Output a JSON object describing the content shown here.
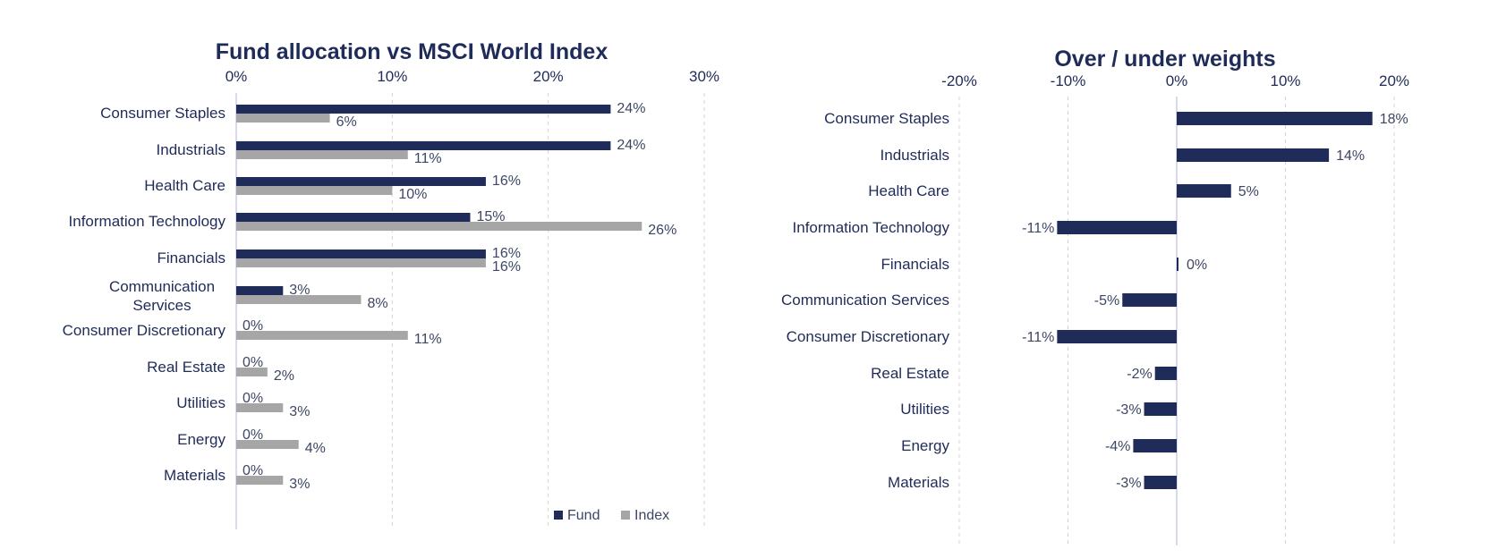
{
  "colors": {
    "fund": "#1f2b58",
    "index": "#a6a6a6",
    "grid": "#d4d4d4",
    "baseline": "#c9cde6"
  },
  "chart_data": [
    {
      "type": "bar",
      "orientation": "horizontal",
      "title": "Fund allocation vs MSCI World Index",
      "categories": [
        "Consumer Staples",
        "Industrials",
        "Health Care",
        "Information Technology",
        "Financials",
        "Communication Services",
        "Consumer Discretionary",
        "Real Estate",
        "Utilities",
        "Energy",
        "Materials"
      ],
      "category_lines": [
        [
          "Consumer Staples"
        ],
        [
          "Industrials"
        ],
        [
          "Health Care"
        ],
        [
          "Information Technology"
        ],
        [
          "Financials"
        ],
        [
          "Communication",
          "Services"
        ],
        [
          "Consumer Discretionary"
        ],
        [
          "Real Estate"
        ],
        [
          "Utilities"
        ],
        [
          "Energy"
        ],
        [
          "Materials"
        ]
      ],
      "series": [
        {
          "name": "Fund",
          "values": [
            24,
            24,
            16,
            15,
            16,
            3,
            0,
            0,
            0,
            0,
            0
          ]
        },
        {
          "name": "Index",
          "values": [
            6,
            11,
            10,
            26,
            16,
            8,
            11,
            2,
            3,
            4,
            3
          ]
        }
      ],
      "xlim": [
        0,
        30
      ],
      "xticks": [
        0,
        10,
        20,
        30
      ],
      "tick_labels": [
        "0%",
        "10%",
        "20%",
        "30%"
      ],
      "axis_position": "top",
      "grid": true,
      "legend": {
        "position": "bottom-right",
        "entries": [
          "Fund",
          "Index"
        ]
      }
    },
    {
      "type": "bar",
      "orientation": "horizontal",
      "title": "Over / under weights",
      "categories": [
        "Consumer Staples",
        "Industrials",
        "Health Care",
        "Information Technology",
        "Financials",
        "Communication Services",
        "Consumer Discretionary",
        "Real Estate",
        "Utilities",
        "Energy",
        "Materials"
      ],
      "series": [
        {
          "values": [
            18,
            14,
            5,
            -11,
            0,
            -5,
            -11,
            -2,
            -3,
            -4,
            -3
          ]
        }
      ],
      "xlim": [
        -20,
        20
      ],
      "xticks": [
        -20,
        -10,
        0,
        10,
        20
      ],
      "tick_labels": [
        "-20%",
        "-10%",
        "0%",
        "10%",
        "20%"
      ],
      "axis_position": "top",
      "grid": true
    }
  ]
}
